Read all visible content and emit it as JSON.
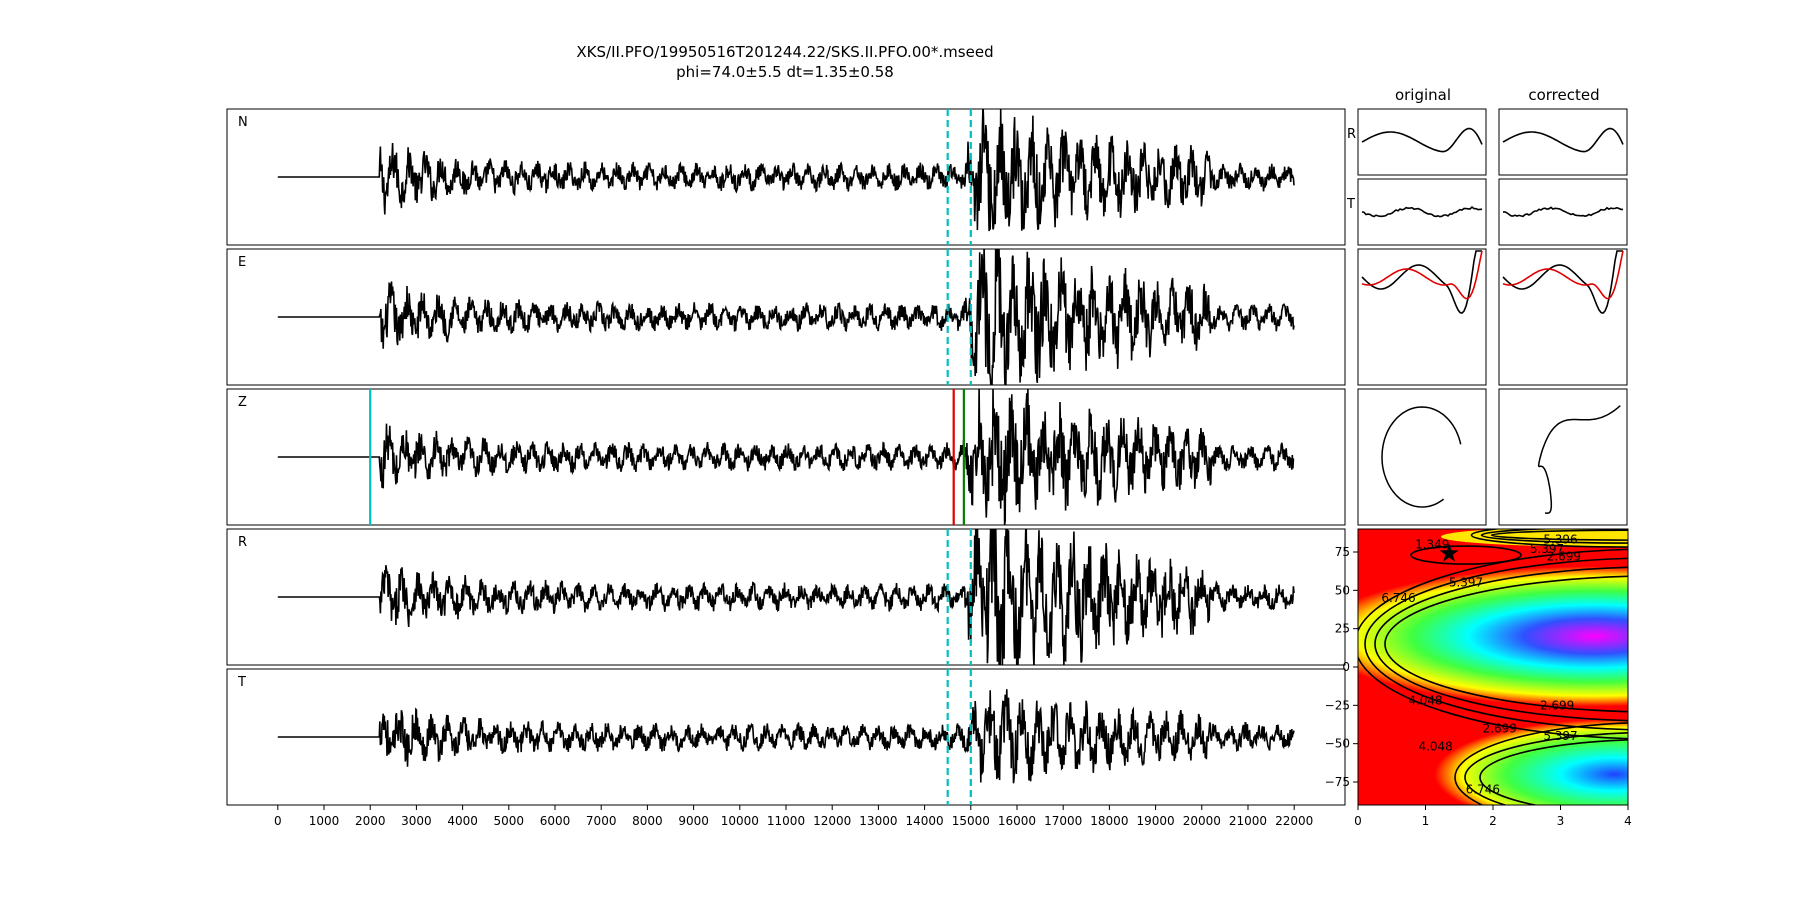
{
  "title": {
    "line1": "XKS/II.PFO/19950516T201244.22/SKS.II.PFO.00*.mseed",
    "line2": "phi=74.0±5.5 dt=1.35±0.58"
  },
  "column_titles": {
    "original": "original",
    "corrected": "corrected"
  },
  "colors": {
    "trace": "#000000",
    "window_marker": "#00bfbf",
    "pick_red": "#e00000",
    "pick_green": "#008000",
    "estimate_star": "#000000"
  },
  "chart_data": [
    {
      "type": "line",
      "panel": "seismograms",
      "x_ticks": [
        0,
        1000,
        2000,
        3000,
        4000,
        5000,
        6000,
        7000,
        8000,
        9000,
        10000,
        11000,
        12000,
        13000,
        14000,
        15000,
        16000,
        17000,
        18000,
        19000,
        20000,
        21000,
        22000
      ],
      "xlim": [
        -1100,
        23100
      ],
      "trace_span": [
        0,
        22000
      ],
      "onset": 2200,
      "channels": [
        {
          "name": "N",
          "dashed_markers": [
            14500,
            15000
          ],
          "amp": 0.55
        },
        {
          "name": "E",
          "dashed_markers": [
            14500,
            15000
          ],
          "amp": 0.7
        },
        {
          "name": "Z",
          "solid_markers": [
            {
              "x": 2000,
              "color": "cyan"
            },
            {
              "x": 14630,
              "color": "red"
            },
            {
              "x": 14850,
              "color": "green"
            }
          ],
          "amp": 0.6
        },
        {
          "name": "R",
          "dashed_markers": [
            14500,
            15000
          ],
          "amp": 0.8
        },
        {
          "name": "T",
          "dashed_markers": [
            14500,
            15000
          ],
          "amp": 0.35
        }
      ]
    },
    {
      "type": "line",
      "panel": "particle-comparison",
      "row_labels": [
        "R",
        "T"
      ],
      "columns": [
        "original",
        "corrected"
      ]
    },
    {
      "type": "heatmap",
      "panel": "error-surface",
      "xlim": [
        0,
        4
      ],
      "ylim": [
        -90,
        90
      ],
      "x_ticks": [
        0,
        1,
        2,
        3,
        4
      ],
      "y_ticks": [
        75,
        50,
        25,
        0,
        -25,
        -50,
        -75
      ],
      "contour_labels": [
        {
          "text": "1.349",
          "x": 1.1,
          "y": 80
        },
        {
          "text": "5.396",
          "x": 3.0,
          "y": 83
        },
        {
          "text": "5.397",
          "x": 2.8,
          "y": 77
        },
        {
          "text": "2.699",
          "x": 3.05,
          "y": 72
        },
        {
          "text": "5.397",
          "x": 1.6,
          "y": 55
        },
        {
          "text": "6.746",
          "x": 0.6,
          "y": 45
        },
        {
          "text": "4.048",
          "x": 1.0,
          "y": -22
        },
        {
          "text": "2.699",
          "x": 2.95,
          "y": -25
        },
        {
          "text": "2.699",
          "x": 2.1,
          "y": -40
        },
        {
          "text": "5.397",
          "x": 3.0,
          "y": -45
        },
        {
          "text": "4.048",
          "x": 1.15,
          "y": -52
        },
        {
          "text": "6.746",
          "x": 1.85,
          "y": -80
        }
      ],
      "best_estimate": {
        "dt": 1.35,
        "phi": 74.0
      }
    }
  ]
}
